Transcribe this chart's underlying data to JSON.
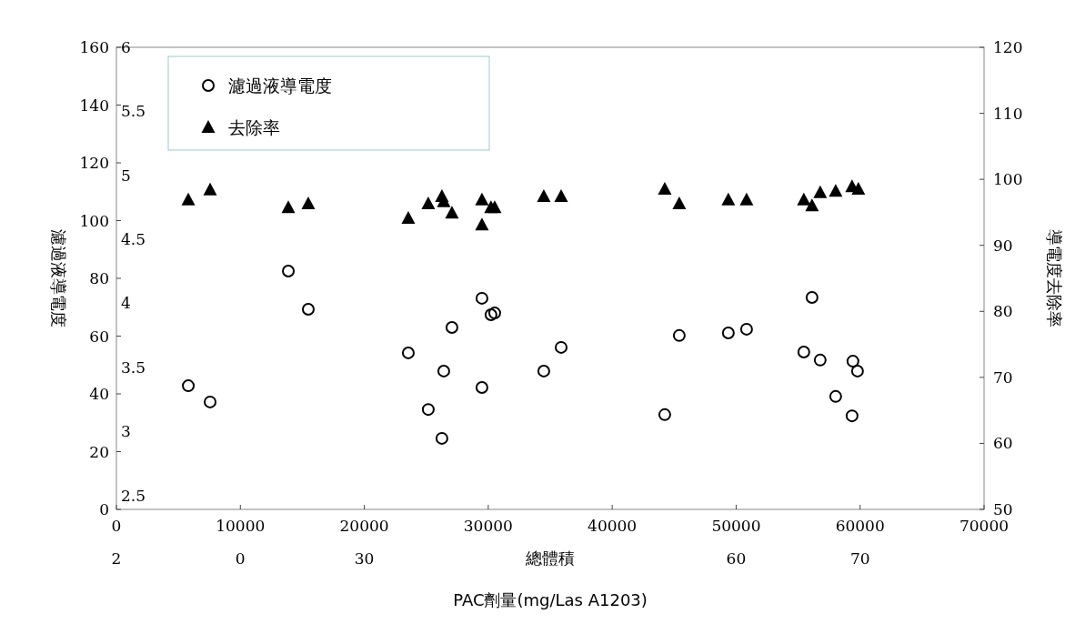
{
  "chart_data": {
    "type": "scatter",
    "xlabel": "總體積",
    "x2label": "PAC劑量(mg/Las A1203)",
    "ylabel": "濾過液導電度",
    "y2label": "導電度去除率",
    "legend": "top left",
    "xlim": [
      0,
      70000
    ],
    "xticks": [
      0,
      10000,
      20000,
      30000,
      40000,
      50000,
      60000,
      70000
    ],
    "annotations": [
      "2",
      "0",
      "30",
      "60",
      "70"
    ],
    "ylim": [
      0,
      160
    ],
    "yticks": [
      0,
      20,
      40,
      60,
      80,
      100,
      120,
      140,
      160
    ],
    "y2lim": [
      50,
      120
    ],
    "y2ticks": [
      50,
      60,
      70,
      80,
      90,
      100,
      110,
      120
    ],
    "y3lim": [
      2.39,
      6
    ],
    "y3ticks": [
      2.5,
      3,
      3.5,
      4,
      4.5,
      5,
      5.5,
      6
    ],
    "series": [
      {
        "name": "濾過液導電度",
        "marker": "circle",
        "color": "#000000",
        "axis": "y",
        "x": [
          5800,
          7560,
          13870,
          15480,
          23550,
          25160,
          26260,
          26410,
          27070,
          29490,
          29490,
          30220,
          30520,
          34480,
          35880,
          44240,
          45410,
          49370,
          50840,
          55460,
          56120,
          56780,
          58030,
          59350,
          59420,
          59790
        ],
        "values": [
          42.8,
          37.2,
          82.5,
          69.3,
          54.2,
          34.6,
          24.6,
          47.9,
          63,
          42.2,
          73.1,
          67.4,
          68,
          47.9,
          56.1,
          32.8,
          60.2,
          61.1,
          62.4,
          54.5,
          73.4,
          51.7,
          39.1,
          32.4,
          51.3,
          47.9
        ]
      },
      {
        "name": "去除率",
        "marker": "triangle",
        "color": "#000000",
        "axis": "y2",
        "x": [
          5800,
          7560,
          13870,
          15480,
          23550,
          25160,
          26260,
          26410,
          27070,
          29490,
          29490,
          30220,
          30520,
          34480,
          35880,
          44240,
          45410,
          49370,
          50840,
          55460,
          56120,
          56780,
          58030,
          59350,
          59860
        ],
        "values": [
          96.9,
          98.4,
          95.7,
          96.3,
          94.1,
          96.3,
          97.4,
          96.6,
          94.9,
          96.9,
          93.1,
          95.7,
          95.7,
          97.4,
          97.4,
          98.5,
          96.3,
          96.9,
          96.9,
          96.9,
          96,
          98,
          98.2,
          98.9,
          98.5
        ]
      }
    ]
  }
}
